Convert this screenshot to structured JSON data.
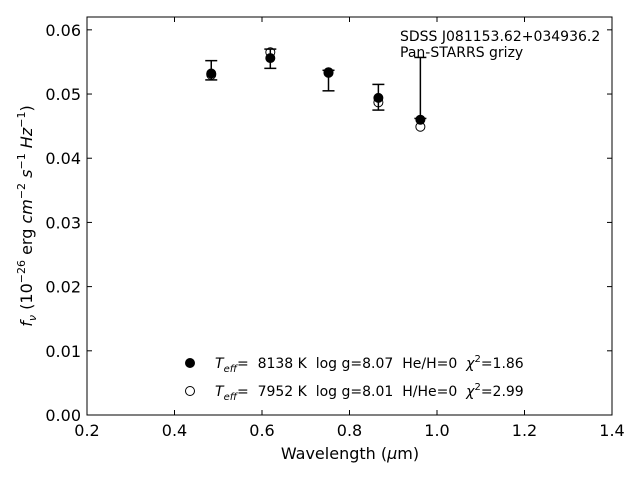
{
  "chart_data": {
    "type": "scatter",
    "title": "",
    "xlabel": "Wavelength (μm)",
    "ylabel": "f_ν (10^-26 erg cm^-2 s^-1 Hz^-1)",
    "xlim": [
      0.2,
      1.4
    ],
    "ylim": [
      0.0,
      0.062
    ],
    "xticks": [
      0.2,
      0.4,
      0.6,
      0.8,
      1.0,
      1.2,
      1.4
    ],
    "xtick_labels": [
      "0.2",
      "0.4",
      "0.6",
      "0.8",
      "1.0",
      "1.2",
      "1.4"
    ],
    "yticks": [
      0.0,
      0.01,
      0.02,
      0.03,
      0.04,
      0.05,
      0.06
    ],
    "ytick_labels": [
      "0.00",
      "0.01",
      "0.02",
      "0.03",
      "0.04",
      "0.05",
      "0.06"
    ],
    "annotation": [
      "SDSS J081153.62+034936.2",
      "Pan-STARRS grizy"
    ],
    "observed": {
      "x": [
        0.484,
        0.619,
        0.752,
        0.866,
        0.962
      ],
      "y": [
        0.0535,
        0.0555,
        0.053,
        0.0495,
        0.0462
      ],
      "yerr_low": [
        0.0013,
        0.0015,
        0.0025,
        0.002,
        0.0
      ],
      "yerr_high": [
        0.0017,
        0.0015,
        0.0007,
        0.002,
        0.0095
      ]
    },
    "series": [
      {
        "name": "T_eff= 8138 K log g=8.07 He/H=0 χ²=1.86",
        "marker": "filled-circle",
        "x": [
          0.484,
          0.619,
          0.752,
          0.866,
          0.962
        ],
        "y": [
          0.0532,
          0.0556,
          0.0533,
          0.0494,
          0.046
        ]
      },
      {
        "name": "T_eff= 7952 K log g=8.01 H/He=0 χ²=2.99",
        "marker": "open-circle",
        "x": [
          0.484,
          0.619,
          0.752,
          0.866,
          0.962
        ],
        "y": [
          0.053,
          0.0565,
          0.0534,
          0.0487,
          0.0449
        ]
      }
    ],
    "legend": [
      {
        "teff_label": "T",
        "teff_sub": "eff",
        "text": "=  8138 K  log g=8.07  He/H=0  ",
        "chi_label": "χ",
        "chi_sup": "2",
        "chi_value": "=1.86",
        "marker": "filled-circle"
      },
      {
        "teff_label": "T",
        "teff_sub": "eff",
        "text": "=  7952 K  log g=8.01  H/He=0  ",
        "chi_label": "χ",
        "chi_sup": "2",
        "chi_value": "=2.99",
        "marker": "open-circle"
      }
    ],
    "legend_position": "lower-center",
    "grid": false
  }
}
